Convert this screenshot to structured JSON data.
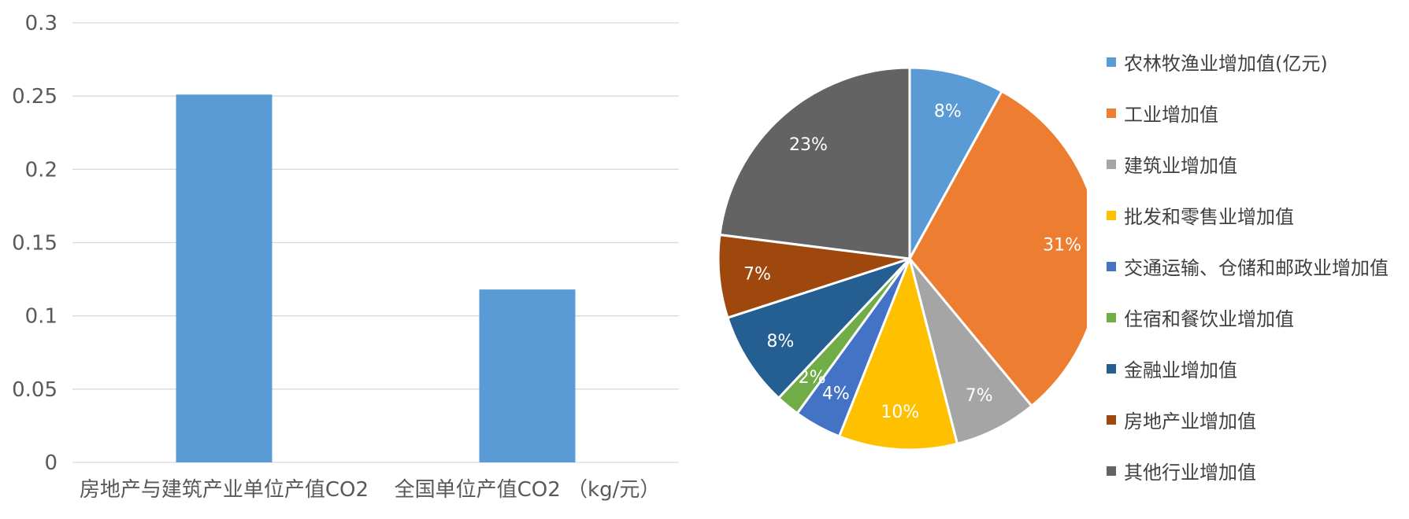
{
  "chart_data": [
    {
      "type": "bar",
      "categories": [
        "房地产与建筑产业单位产值CO2",
        "全国单位产值CO2 （kg/元）"
      ],
      "values": [
        0.251,
        0.118
      ],
      "ylim": [
        0,
        0.3
      ],
      "yticks": [
        "0",
        "0.05",
        "0.1",
        "0.15",
        "0.2",
        "0.25",
        "0.3"
      ],
      "grid": true,
      "color": "#5B9BD5"
    },
    {
      "type": "pie",
      "labels": [
        "农林牧渔业增加值(亿元)",
        "工业增加值",
        "建筑业增加值",
        "批发和零售业增加值",
        "交通运输、仓储和邮政业增加值",
        "住宿和餐饮业增加值",
        "金融业增加值",
        "房地产业增加值",
        "其他行业增加值"
      ],
      "values": [
        8,
        31,
        7,
        10,
        4,
        2,
        8,
        7,
        23
      ],
      "data_labels": [
        "8%",
        "31%",
        "7%",
        "10%",
        "4%",
        "2%",
        "8%",
        "7%",
        "23%"
      ],
      "colors": [
        "#5B9BD5",
        "#ED7D31",
        "#A5A5A5",
        "#FFC000",
        "#4472C4",
        "#70AD47",
        "#255E91",
        "#9E480E",
        "#636363"
      ],
      "legend_position": "right"
    }
  ]
}
